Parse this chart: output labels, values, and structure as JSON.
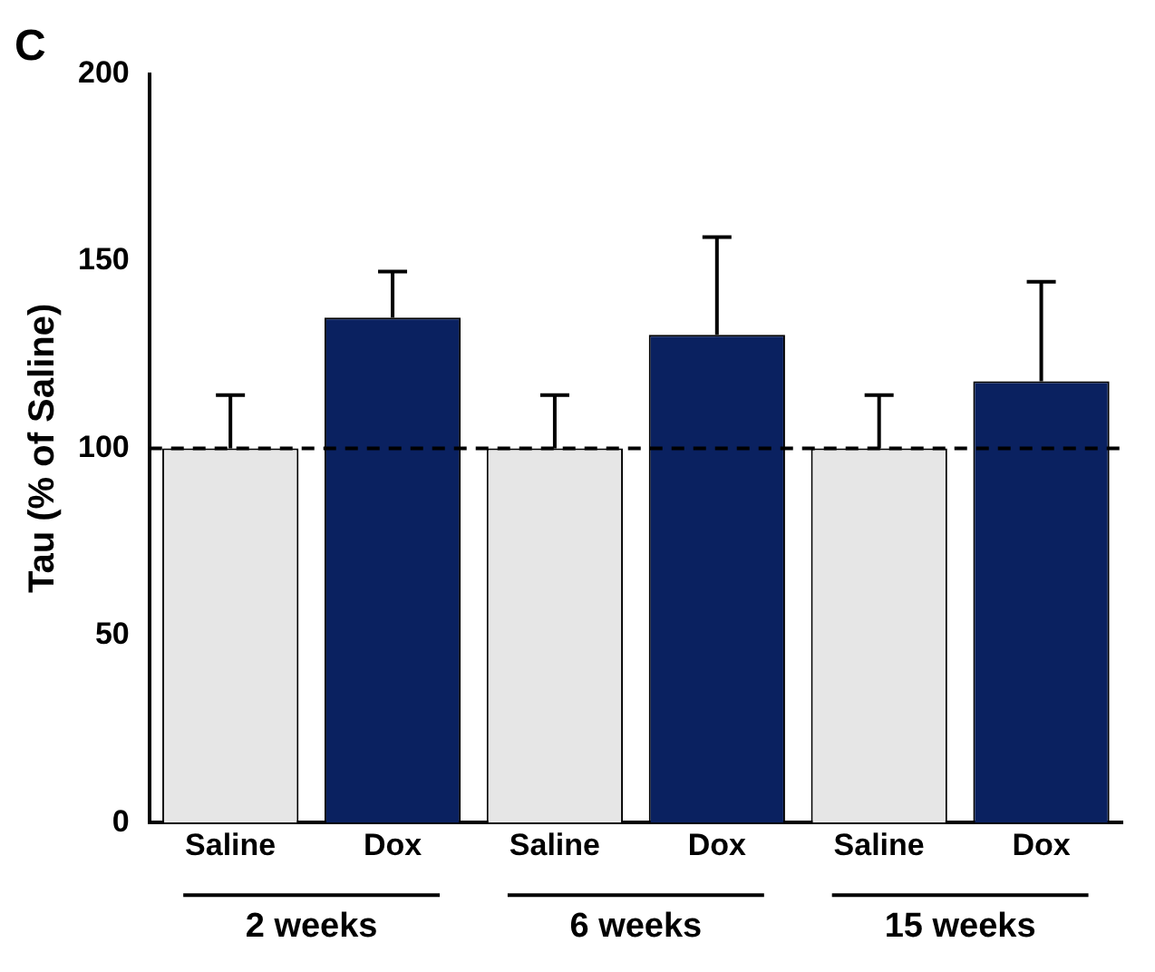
{
  "chart_data": {
    "type": "bar",
    "title": "C",
    "ylabel": "Tau (% of Saline)",
    "categories": [
      "Saline",
      "Dox",
      "Saline",
      "Dox",
      "Saline",
      "Dox"
    ],
    "values": [
      100,
      134.9,
      100,
      130.3,
      100,
      117.9
    ],
    "colors": [
      "#e6e6e6",
      "#0a2160",
      "#e6e6e6",
      "#0a2160",
      "#e6e6e6",
      "#0a2160"
    ],
    "errors": [
      [
        100,
        114.2
      ],
      [
        134.9,
        147.2
      ],
      [
        100,
        114.2
      ],
      [
        130.3,
        156.4
      ],
      [
        100,
        114.2
      ],
      [
        117.9,
        144.5
      ]
    ],
    "ylim": [
      0,
      200
    ],
    "yticks": [
      0,
      50,
      100,
      150,
      200
    ],
    "grid": false,
    "legend": false,
    "ref_lines": [
      {
        "axis": "y",
        "value": 100,
        "line_style": "dashed",
        "color": "#000000"
      }
    ],
    "annotations": [
      "2 weeks",
      "6 weeks",
      "15 weeks"
    ]
  }
}
